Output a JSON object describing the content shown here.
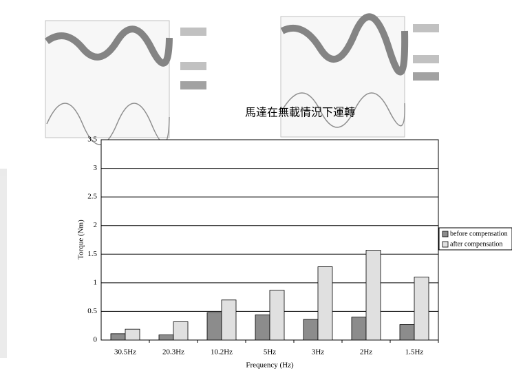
{
  "chart_data": {
    "type": "bar",
    "title": "馬達在無載情況下運轉",
    "x_label": "Frequency (Hz)",
    "y_label": "Torque (Nm)",
    "categories": [
      "30.5Hz",
      "20.3Hz",
      "10.2Hz",
      "5Hz",
      "3Hz",
      "2Hz",
      "1.5Hz"
    ],
    "series": [
      {
        "name": "before compensation",
        "color": "#8c8c8c",
        "values": [
          0.11,
          0.09,
          0.48,
          0.44,
          0.36,
          0.4,
          0.27
        ]
      },
      {
        "name": "after compensation",
        "color": "#e0e0e0",
        "values": [
          0.19,
          0.32,
          0.7,
          0.87,
          1.28,
          1.57,
          1.1
        ]
      }
    ],
    "ylim": [
      0,
      3.5
    ],
    "yticks": [
      0,
      0.5,
      1,
      1.5,
      2,
      2.5,
      3,
      3.5
    ],
    "grid": true,
    "legend": "right"
  }
}
